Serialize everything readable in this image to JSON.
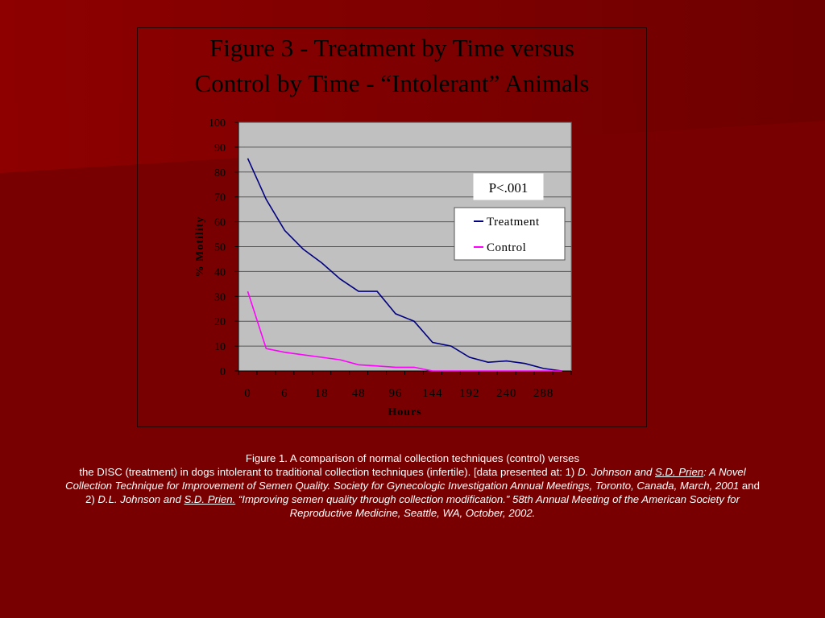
{
  "figure": {
    "title_line1": "Figure 3 - Treatment by Time versus",
    "title_line2": "Control by Time - “Intolerant” Animals"
  },
  "colors": {
    "background": "#7a0000",
    "plot_area": "#c0c0c0",
    "treatment": "#000080",
    "control": "#ff00ff"
  },
  "chart_data": {
    "type": "line",
    "xlabel": "Hours",
    "ylabel": "% Motility",
    "ylim": [
      0,
      100
    ],
    "yticks": [
      0,
      10,
      20,
      30,
      40,
      50,
      60,
      70,
      80,
      90,
      100
    ],
    "xtick_labels": [
      "0",
      "6",
      "18",
      "48",
      "96",
      "144",
      "192",
      "240",
      "288"
    ],
    "x": [
      1,
      2,
      3,
      4,
      5,
      6,
      7,
      8,
      9,
      10,
      11,
      12,
      13,
      14,
      15,
      16,
      17,
      18
    ],
    "grid": true,
    "legend_position": "right",
    "annotation": "P<.001",
    "series": [
      {
        "name": "Treatment",
        "color": "#000080",
        "values": [
          85.5,
          69,
          56.5,
          49,
          43.5,
          37,
          32,
          32,
          23,
          20,
          11.5,
          10,
          5.5,
          3.5,
          4,
          3,
          1,
          0
        ]
      },
      {
        "name": "Control",
        "color": "#ff00ff",
        "values": [
          32,
          9,
          7.5,
          6.5,
          5.5,
          4.5,
          2.5,
          2,
          1.5,
          1.5,
          0,
          0,
          0,
          0,
          0,
          0,
          0,
          0
        ]
      }
    ]
  },
  "caption": {
    "line1": "Figure 1. A comparison of normal collection techniques (control) verses",
    "line2_a": "the DISC  (treatment) in dogs intolerant to traditional collection techniques (infertile). [data presented at: 1) ",
    "line2_b": "D. Johnson and ",
    "line2_c": "S.D. Prien",
    "line2_d": ": A Novel",
    "line3_a": "Collection Technique for Improvement of Semen Quality. Society for Gynecologic Investigation Annual Meetings, Toronto, Canada, March, 2001",
    "line3_b": " and",
    "line4_a": "2) ",
    "line4_b": "D.L. Johnson and ",
    "line4_c": "S.D. Prien.",
    "line4_d": " “Improving semen quality through collection modification.” 58th Annual Meeting of the American Society for",
    "line5": "Reproductive Medicine, Seattle, WA, October, 2002."
  }
}
